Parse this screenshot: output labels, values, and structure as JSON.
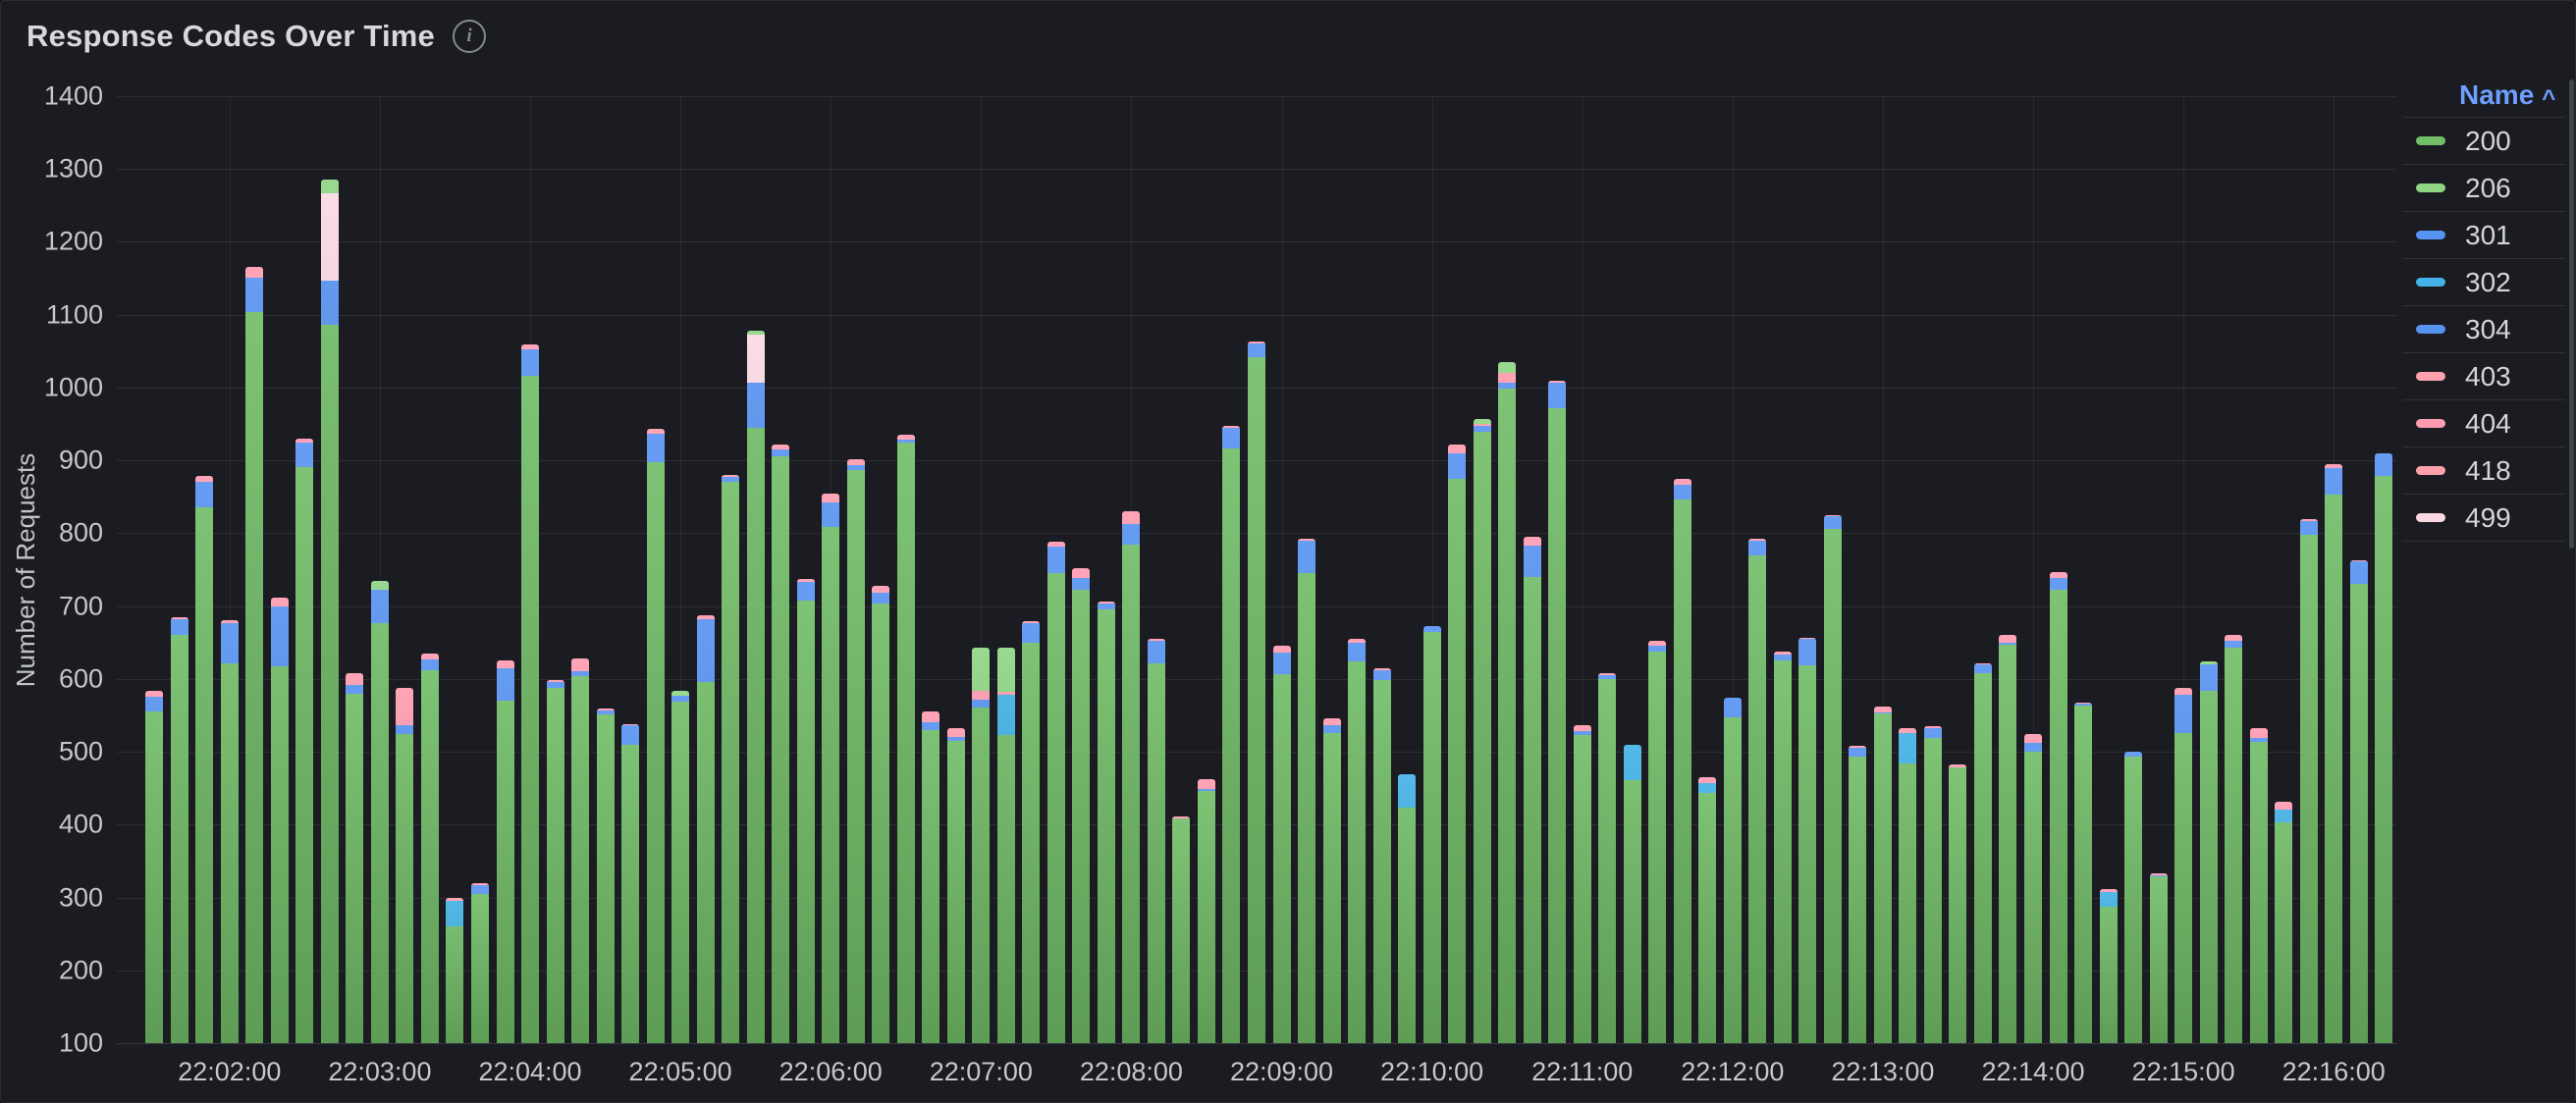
{
  "panel": {
    "title": "Response Codes Over Time",
    "info_icon": "i"
  },
  "legend": {
    "header_label": "Name",
    "sort_icon": "^",
    "sort_direction": "ascending"
  },
  "axes": {
    "y_title": "Number of Requests",
    "y_min": 100,
    "y_max": 1400,
    "y_step": 100,
    "x_tick_labels": [
      "22:02:00",
      "22:03:00",
      "22:04:00",
      "22:05:00",
      "22:06:00",
      "22:07:00",
      "22:08:00",
      "22:09:00",
      "22:10:00",
      "22:11:00",
      "22:12:00",
      "22:13:00",
      "22:14:00",
      "22:15:00",
      "22:16:00"
    ],
    "x_tick_first_bar_index": 3,
    "x_tick_every": 6
  },
  "chart_data": {
    "type": "bar",
    "stacked": true,
    "title": "Response Codes Over Time",
    "ylabel": "Number of Requests",
    "xlabel": "",
    "ylim": [
      100,
      1400
    ],
    "grid": true,
    "legend_position": "right-table",
    "x_step_seconds": 10,
    "categories": [
      "22:01:30",
      "22:01:40",
      "22:01:50",
      "22:02:00",
      "22:02:10",
      "22:02:20",
      "22:02:30",
      "22:02:40",
      "22:02:50",
      "22:03:00",
      "22:03:10",
      "22:03:20",
      "22:03:30",
      "22:03:40",
      "22:03:50",
      "22:04:00",
      "22:04:10",
      "22:04:20",
      "22:04:30",
      "22:04:40",
      "22:04:50",
      "22:05:00",
      "22:05:10",
      "22:05:20",
      "22:05:30",
      "22:05:40",
      "22:05:50",
      "22:06:00",
      "22:06:10",
      "22:06:20",
      "22:06:30",
      "22:06:40",
      "22:06:50",
      "22:07:00",
      "22:07:10",
      "22:07:20",
      "22:07:30",
      "22:07:40",
      "22:07:50",
      "22:08:00",
      "22:08:10",
      "22:08:20",
      "22:08:30",
      "22:08:40",
      "22:08:50",
      "22:09:00",
      "22:09:10",
      "22:09:20",
      "22:09:30",
      "22:09:40",
      "22:09:50",
      "22:10:00",
      "22:10:10",
      "22:10:20",
      "22:10:30",
      "22:10:40",
      "22:10:50",
      "22:11:00",
      "22:11:10",
      "22:11:20",
      "22:11:30",
      "22:11:40",
      "22:11:50",
      "22:12:00",
      "22:12:10",
      "22:12:20",
      "22:12:30",
      "22:12:40",
      "22:12:50",
      "22:13:00",
      "22:13:10",
      "22:13:20",
      "22:13:30",
      "22:13:40",
      "22:13:50",
      "22:14:00",
      "22:14:10",
      "22:14:20",
      "22:14:30",
      "22:14:40",
      "22:14:50",
      "22:15:00",
      "22:15:10",
      "22:15:20",
      "22:15:30",
      "22:15:40",
      "22:15:50",
      "22:16:00",
      "22:16:10",
      "22:16:20"
    ],
    "stack_order": [
      "200",
      "301",
      "302",
      "304",
      "403",
      "404",
      "418",
      "499",
      "206"
    ],
    "series": [
      {
        "name": "200",
        "color": "#73bf69",
        "values": [
          555,
          660,
          836,
          621,
          1104,
          617,
          891,
          1086,
          579,
          676,
          525,
          612,
          260,
          305,
          570,
          1016,
          588,
          604,
          551,
          509,
          898,
          569,
          596,
          870,
          945,
          905,
          708,
          808,
          887,
          703,
          925,
          530,
          515,
          561,
          523,
          649,
          745,
          723,
          696,
          785,
          621,
          409,
          446,
          917,
          1042,
          607,
          745,
          526,
          624,
          598,
          423,
          664,
          874,
          939,
          999,
          740,
          972,
          523,
          600,
          461,
          637,
          846,
          444,
          547,
          770,
          625,
          618,
          806,
          494,
          552,
          484,
          519,
          479,
          608,
          647,
          500,
          722,
          563,
          287,
          494,
          329,
          526,
          584,
          643,
          513,
          403,
          798,
          853,
          731,
          878
        ]
      },
      {
        "name": "206",
        "color": "#8ed584",
        "values": [
          0,
          0,
          0,
          0,
          0,
          0,
          0,
          18,
          0,
          12,
          0,
          0,
          0,
          0,
          0,
          0,
          0,
          0,
          0,
          0,
          0,
          6,
          0,
          0,
          5,
          0,
          0,
          0,
          0,
          0,
          0,
          0,
          0,
          59,
          61,
          0,
          0,
          0,
          0,
          0,
          0,
          0,
          0,
          0,
          0,
          0,
          0,
          0,
          0,
          0,
          0,
          0,
          0,
          7,
          15,
          0,
          0,
          0,
          0,
          0,
          0,
          0,
          0,
          0,
          0,
          0,
          0,
          0,
          0,
          0,
          0,
          0,
          0,
          0,
          0,
          0,
          0,
          0,
          0,
          0,
          0,
          0,
          4,
          0,
          0,
          0,
          0,
          0,
          0,
          0
        ]
      },
      {
        "name": "301",
        "color": "#5794f2",
        "values": [
          0,
          0,
          0,
          0,
          0,
          0,
          0,
          0,
          0,
          0,
          0,
          0,
          0,
          0,
          0,
          0,
          0,
          0,
          0,
          0,
          0,
          0,
          0,
          0,
          0,
          0,
          0,
          0,
          0,
          0,
          0,
          0,
          0,
          0,
          0,
          0,
          0,
          0,
          0,
          0,
          0,
          0,
          0,
          0,
          0,
          0,
          0,
          0,
          0,
          0,
          0,
          0,
          0,
          0,
          0,
          0,
          0,
          0,
          0,
          0,
          0,
          0,
          0,
          0,
          0,
          0,
          0,
          0,
          0,
          0,
          0,
          0,
          0,
          0,
          0,
          0,
          0,
          0,
          0,
          0,
          0,
          0,
          0,
          0,
          0,
          0,
          0,
          0,
          0,
          0
        ]
      },
      {
        "name": "302",
        "color": "#43b2e6",
        "values": [
          0,
          0,
          0,
          0,
          0,
          0,
          0,
          0,
          0,
          0,
          0,
          0,
          35,
          0,
          0,
          0,
          0,
          0,
          0,
          0,
          0,
          0,
          0,
          0,
          0,
          0,
          0,
          0,
          0,
          0,
          0,
          0,
          0,
          0,
          55,
          0,
          0,
          0,
          0,
          0,
          0,
          0,
          0,
          0,
          0,
          0,
          0,
          0,
          0,
          0,
          46,
          0,
          0,
          0,
          0,
          0,
          0,
          0,
          0,
          49,
          0,
          0,
          13,
          0,
          0,
          0,
          0,
          0,
          0,
          0,
          42,
          0,
          0,
          0,
          0,
          0,
          0,
          0,
          20,
          0,
          0,
          0,
          0,
          0,
          0,
          18,
          0,
          0,
          0,
          0
        ]
      },
      {
        "name": "304",
        "color": "#5794f2",
        "values": [
          20,
          22,
          34,
          55,
          47,
          83,
          34,
          61,
          13,
          46,
          12,
          15,
          0,
          12,
          45,
          37,
          8,
          7,
          6,
          27,
          38,
          8,
          86,
          8,
          61,
          10,
          25,
          34,
          7,
          15,
          4,
          10,
          5,
          10,
          0,
          28,
          37,
          15,
          8,
          27,
          32,
          0,
          3,
          28,
          19,
          29,
          45,
          10,
          25,
          14,
          0,
          8,
          36,
          9,
          8,
          43,
          35,
          5,
          5,
          0,
          8,
          20,
          0,
          27,
          20,
          9,
          37,
          17,
          13,
          2,
          0,
          13,
          0,
          12,
          2,
          12,
          16,
          3,
          0,
          6,
          2,
          52,
          36,
          10,
          6,
          0,
          19,
          37,
          30,
          31
        ]
      },
      {
        "name": "403",
        "color": "#ffa1ad",
        "values": [
          0,
          0,
          0,
          0,
          0,
          0,
          0,
          0,
          0,
          0,
          0,
          0,
          0,
          0,
          0,
          0,
          0,
          0,
          0,
          0,
          0,
          0,
          0,
          0,
          0,
          0,
          0,
          0,
          0,
          0,
          0,
          0,
          0,
          0,
          0,
          0,
          0,
          0,
          0,
          0,
          0,
          0,
          0,
          0,
          0,
          0,
          0,
          0,
          0,
          0,
          0,
          0,
          0,
          0,
          0,
          0,
          0,
          0,
          0,
          0,
          0,
          0,
          0,
          0,
          0,
          0,
          0,
          0,
          0,
          0,
          0,
          0,
          0,
          0,
          0,
          0,
          0,
          0,
          0,
          0,
          0,
          0,
          0,
          0,
          0,
          0,
          0,
          0,
          0,
          0
        ]
      },
      {
        "name": "404",
        "color": "#ff9bb0",
        "values": [
          8,
          3,
          8,
          5,
          14,
          12,
          5,
          0,
          16,
          0,
          50,
          8,
          5,
          3,
          10,
          6,
          2,
          17,
          3,
          2,
          7,
          0,
          6,
          2,
          0,
          7,
          4,
          13,
          8,
          10,
          6,
          15,
          12,
          13,
          4,
          2,
          6,
          14,
          2,
          18,
          2,
          2,
          14,
          3,
          2,
          10,
          2,
          10,
          6,
          3,
          0,
          0,
          12,
          2,
          13,
          12,
          3,
          8,
          3,
          0,
          8,
          9,
          8,
          0,
          2,
          3,
          2,
          2,
          1,
          8,
          6,
          3,
          3,
          2,
          12,
          13,
          9,
          2,
          5,
          0,
          2,
          10,
          0,
          8,
          13,
          11,
          3,
          5,
          2,
          0
        ]
      },
      {
        "name": "418",
        "color": "#ffa1ad",
        "values": [
          0,
          0,
          0,
          0,
          0,
          0,
          0,
          0,
          0,
          0,
          0,
          0,
          0,
          0,
          0,
          0,
          0,
          0,
          0,
          0,
          0,
          0,
          0,
          0,
          0,
          0,
          0,
          0,
          0,
          0,
          0,
          0,
          0,
          0,
          0,
          0,
          0,
          0,
          0,
          0,
          0,
          0,
          0,
          0,
          0,
          0,
          0,
          0,
          0,
          0,
          0,
          0,
          0,
          0,
          0,
          0,
          0,
          0,
          0,
          0,
          0,
          0,
          0,
          0,
          0,
          0,
          0,
          0,
          0,
          0,
          0,
          0,
          0,
          0,
          0,
          0,
          0,
          0,
          0,
          0,
          0,
          0,
          0,
          0,
          0,
          0,
          0,
          0,
          0,
          0
        ]
      },
      {
        "name": "499",
        "color": "#fbd9e3",
        "values": [
          0,
          0,
          0,
          0,
          0,
          0,
          0,
          120,
          0,
          0,
          0,
          0,
          0,
          0,
          0,
          0,
          0,
          0,
          0,
          0,
          0,
          0,
          0,
          0,
          67,
          0,
          0,
          0,
          0,
          0,
          0,
          0,
          0,
          0,
          0,
          0,
          0,
          0,
          0,
          0,
          0,
          0,
          0,
          0,
          0,
          0,
          0,
          0,
          0,
          0,
          0,
          0,
          0,
          0,
          0,
          0,
          0,
          0,
          0,
          0,
          0,
          0,
          0,
          0,
          0,
          0,
          0,
          0,
          0,
          0,
          0,
          0,
          0,
          0,
          0,
          0,
          0,
          0,
          0,
          0,
          0,
          0,
          0,
          0,
          0,
          0,
          0,
          0,
          0,
          0
        ]
      }
    ],
    "estimation_note": "Values estimated from gridlines (±15). Codes sharing a colour are visually indistinguishable in the bars: blues (301/302/304) were aggregated into 304 (royal) and 302 (cyan segments); pinks (403/404/418/499) into 404 (small caps) and 499 (pale spikes at 22:02:40 and 22:05:30). Y axis starts at 100, bars are clipped at the axis minimum."
  }
}
